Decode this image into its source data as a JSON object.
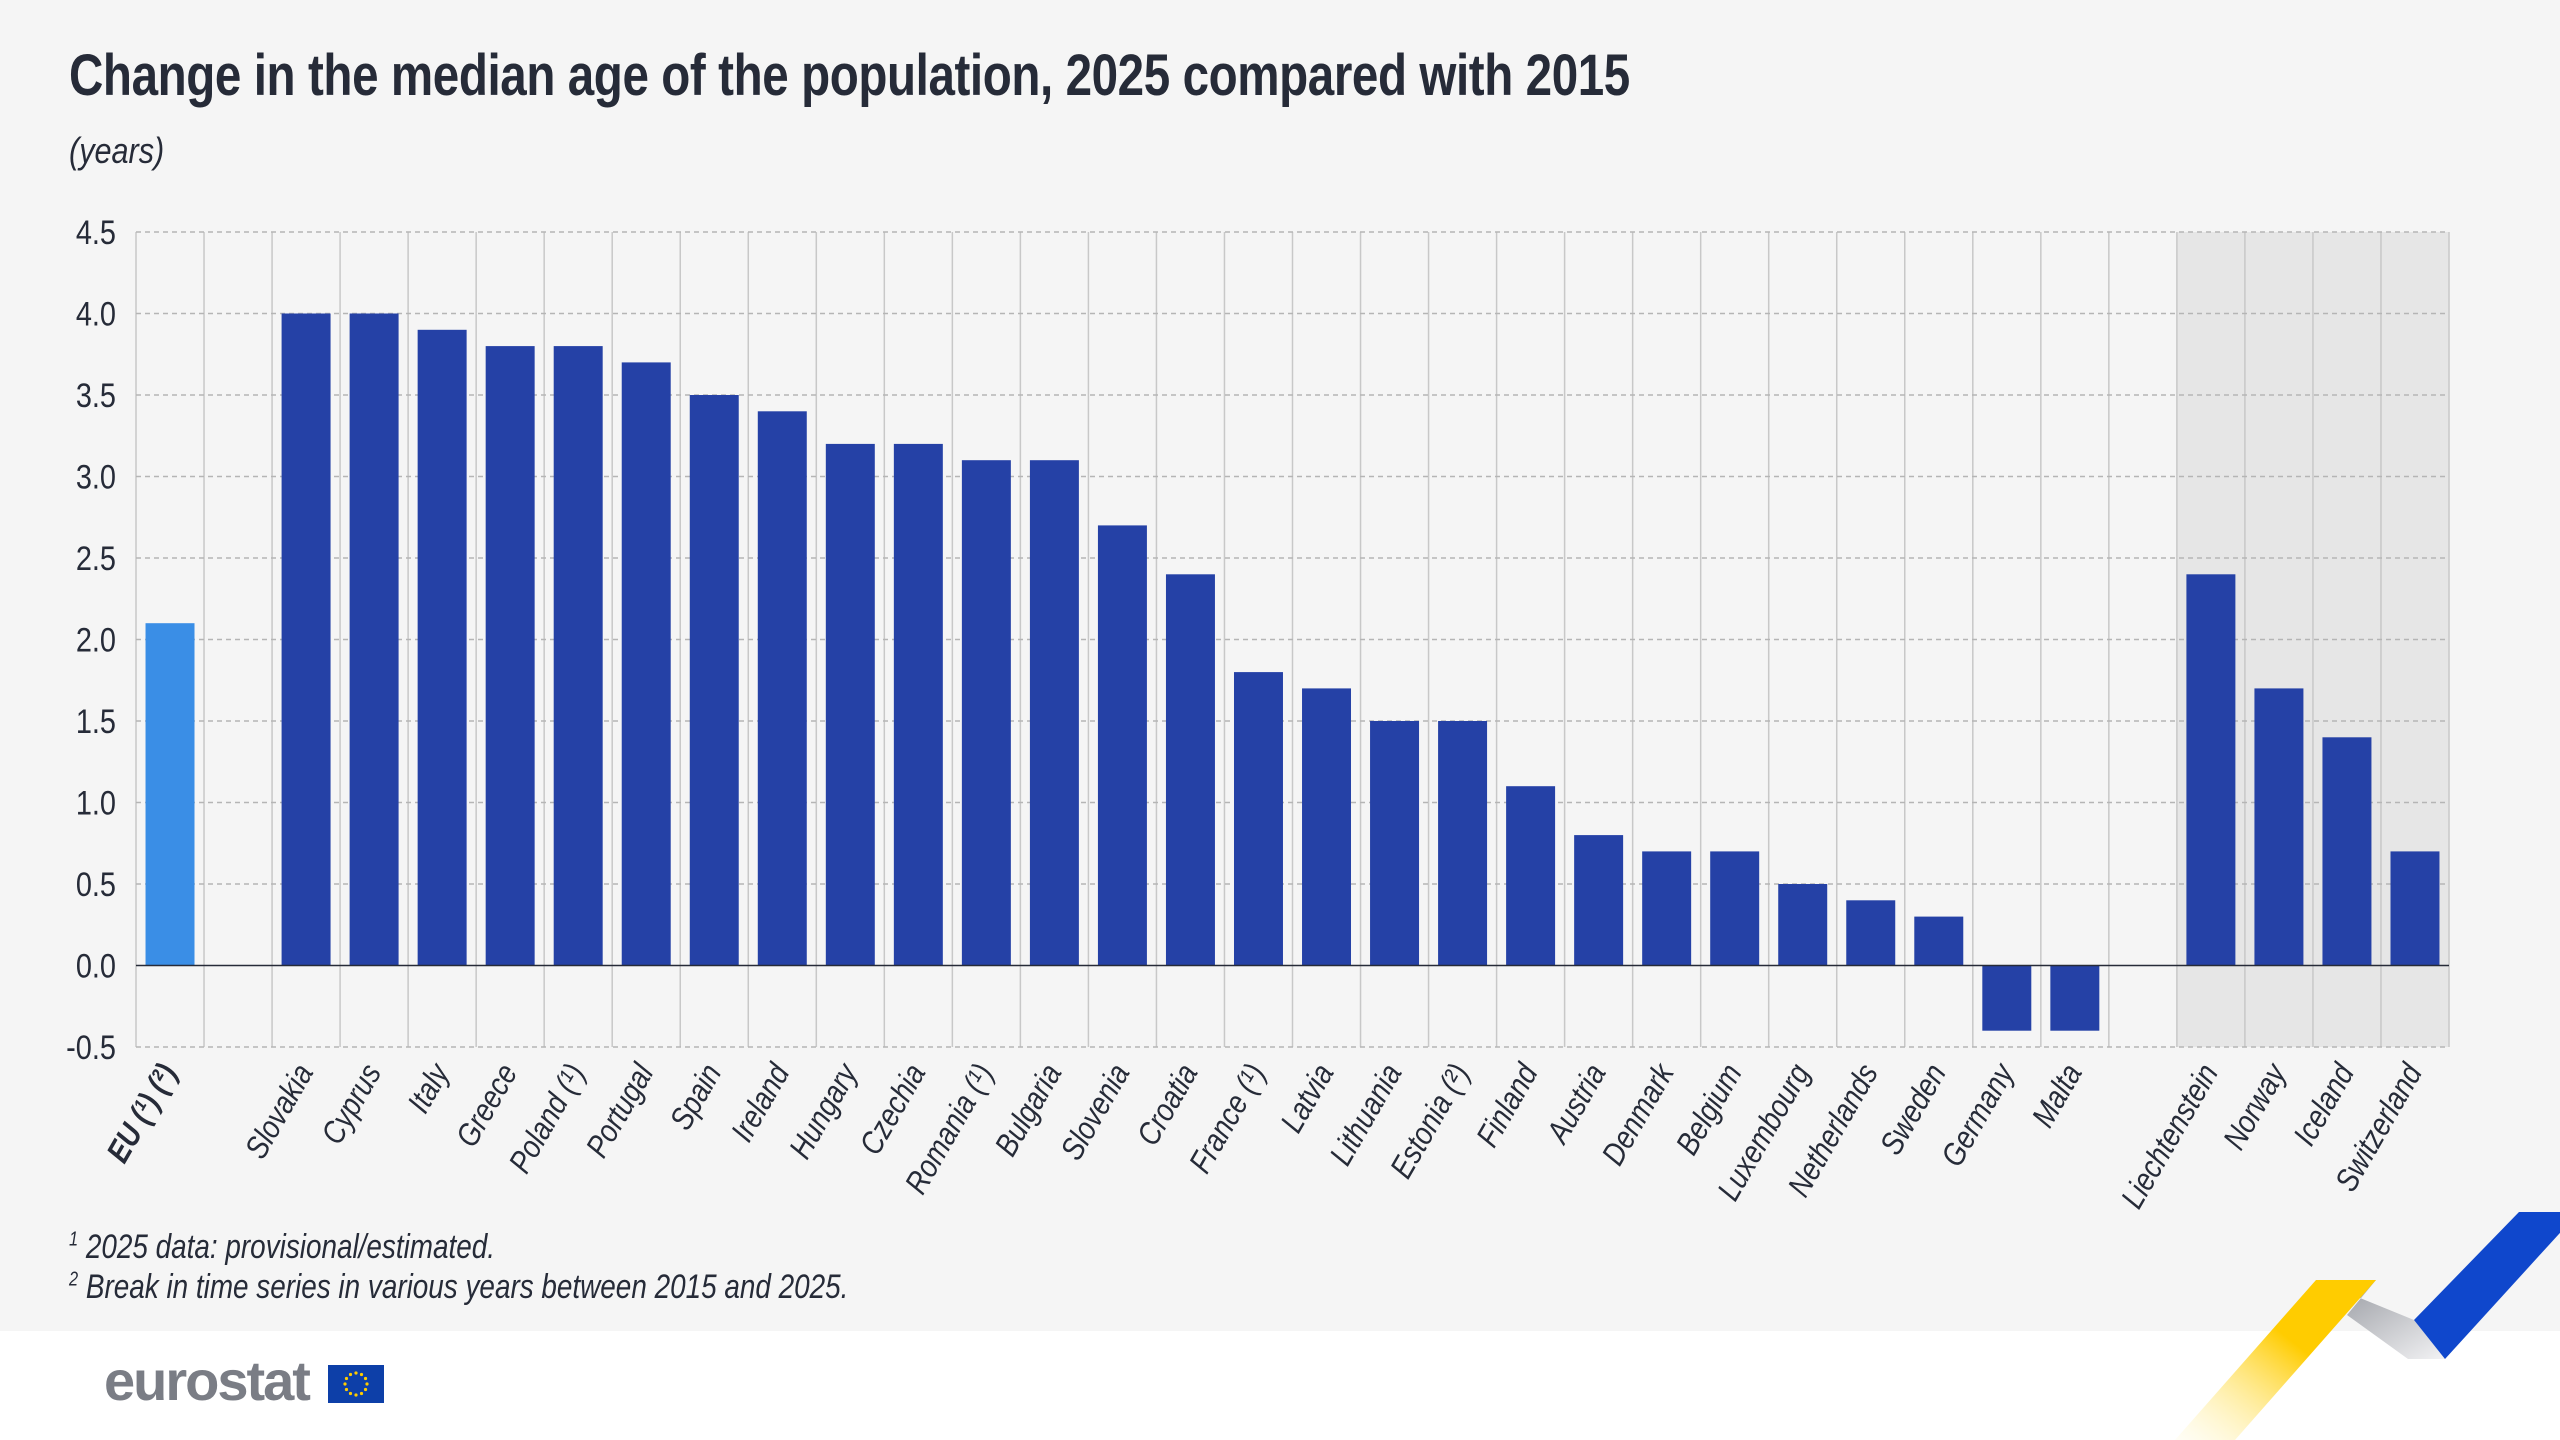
{
  "title": "Change in the median age of the population, 2025 compared with 2015",
  "subtitle": "(years)",
  "footnotes": [
    {
      "mark": "1",
      "text": "2025 data: provisional/estimated."
    },
    {
      "mark": "2",
      "text": "Break in time series in various years between 2015 and 2025."
    }
  ],
  "logo": {
    "text": "eurostat"
  },
  "colors": {
    "eu": "#3a8ee6",
    "country": "#2541a6",
    "efta_band": "#e6e6e6",
    "background": "#f5f5f5"
  },
  "chart_data": {
    "type": "bar",
    "title": "Change in the median age of the population, 2025 compared with 2015",
    "ylabel": "(years)",
    "ylim": [
      -0.5,
      4.5
    ],
    "yticks": [
      "4.5",
      "4.0",
      "3.5",
      "3.0",
      "2.5",
      "2.0",
      "1.5",
      "1.0",
      "0.5",
      "0.0",
      "-0.5"
    ],
    "grid": true,
    "categories": [
      "EU (¹) (²)",
      "",
      "Slovakia",
      "Cyprus",
      "Italy",
      "Greece",
      "Poland (¹)",
      "Portugal",
      "Spain",
      "Ireland",
      "Hungary",
      "Czechia",
      "Romania (¹)",
      "Bulgaria",
      "Slovenia",
      "Croatia",
      "France (¹)",
      "Latvia",
      "Lithuania",
      "Estonia (²)",
      "Finland",
      "Austria",
      "Denmark",
      "Belgium",
      "Luxembourg",
      "Netherlands",
      "Sweden",
      "Germany",
      "Malta",
      "",
      "Liechtenstein",
      "Norway",
      "Iceland",
      "Switzerland"
    ],
    "values": [
      2.1,
      null,
      4.0,
      4.0,
      3.9,
      3.8,
      3.8,
      3.7,
      3.5,
      3.4,
      3.2,
      3.2,
      3.1,
      3.1,
      2.7,
      2.4,
      1.8,
      1.7,
      1.5,
      1.5,
      1.1,
      0.8,
      0.7,
      0.7,
      0.5,
      0.4,
      0.3,
      -0.4,
      -0.4,
      null,
      2.4,
      1.7,
      1.4,
      0.7
    ],
    "highlighted": [
      "EU (¹) (²)"
    ],
    "shaded_group": [
      "Liechtenstein",
      "Norway",
      "Iceland",
      "Switzerland"
    ]
  }
}
